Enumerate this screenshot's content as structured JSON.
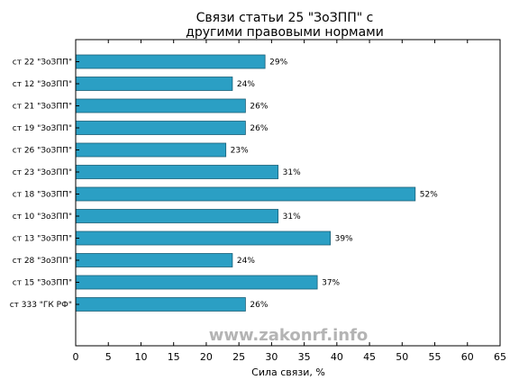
{
  "chart_data": {
    "type": "bar",
    "orientation": "horizontal",
    "title": "Связи статьи 25 \"ЗоЗПП\" с\nдругими правовыми нормами",
    "xlabel": "Сила связи, %",
    "ylabel": "",
    "xlim": [
      0,
      65
    ],
    "xticks": [
      0,
      5,
      10,
      15,
      20,
      25,
      30,
      35,
      40,
      45,
      50,
      55,
      60,
      65
    ],
    "grid": false,
    "bar_color": "#2b9fc4",
    "categories": [
      "ст 22 \"ЗоЗПП\"",
      "ст 12 \"ЗоЗПП\"",
      "ст 21 \"ЗоЗПП\"",
      "ст 19 \"ЗоЗПП\"",
      "ст 26 \"ЗоЗПП\"",
      "ст 23 \"ЗоЗПП\"",
      "ст 18 \"ЗоЗПП\"",
      "ст 10 \"ЗоЗПП\"",
      "ст 13 \"ЗоЗПП\"",
      "ст 28 \"ЗоЗПП\"",
      "ст 15 \"ЗоЗПП\"",
      "ст 333 \"ГК РФ\""
    ],
    "values": [
      29,
      24,
      26,
      26,
      23,
      31,
      52,
      31,
      39,
      24,
      37,
      26
    ],
    "value_labels": [
      "29%",
      "24%",
      "26%",
      "26%",
      "23%",
      "31%",
      "52%",
      "31%",
      "39%",
      "24%",
      "37%",
      "26%"
    ]
  },
  "watermark": "www.zakonrf.info"
}
